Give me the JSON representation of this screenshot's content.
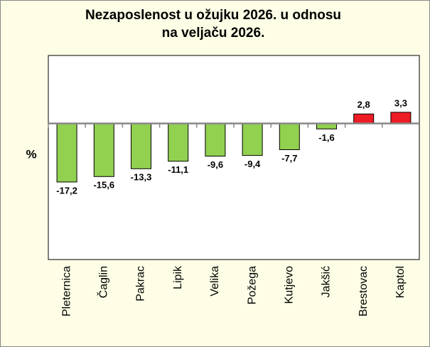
{
  "chart_data": {
    "type": "bar",
    "title": [
      "Nezaposlenost u ožujku 2026. u odnosu",
      "na veljaču 2026."
    ],
    "y_label": "%",
    "categories": [
      "Pleternica",
      "Čaglin",
      "Pakrac",
      "Lipik",
      "Velika",
      "Požega",
      "Kutjevo",
      "Jakšić",
      "Brestovac",
      "Kaptol"
    ],
    "values": [
      -17.2,
      -15.6,
      -13.3,
      -11.1,
      -9.6,
      -9.4,
      -7.7,
      -1.6,
      2.8,
      3.3
    ],
    "value_labels": [
      "-17,2",
      "-15,6",
      "-13,3",
      "-11,1",
      "-9,6",
      "-9,4",
      "-7,7",
      "-1,6",
      "2,8",
      "3,3"
    ],
    "colors": [
      "#92d050",
      "#92d050",
      "#92d050",
      "#92d050",
      "#92d050",
      "#92d050",
      "#92d050",
      "#92d050",
      "#ee1c25",
      "#ee1c25"
    ],
    "ylim": [
      -40,
      20
    ]
  }
}
